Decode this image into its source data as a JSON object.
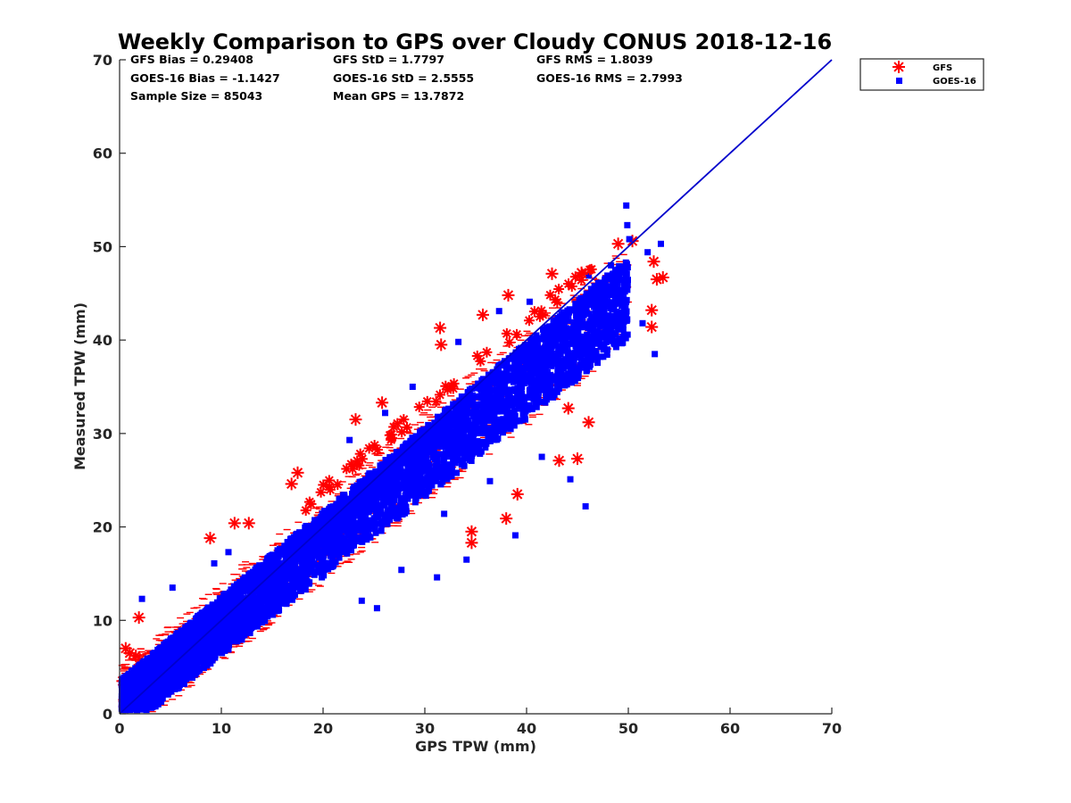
{
  "chart_data": {
    "type": "scatter",
    "title": "Weekly Comparison to GPS over Cloudy CONUS 2018-12-16",
    "xlabel": "GPS TPW (mm)",
    "ylabel": "Measured TPW (mm)",
    "xlim": [
      0,
      70
    ],
    "ylim": [
      0,
      70
    ],
    "xticks": [
      "0",
      "10",
      "20",
      "30",
      "40",
      "50",
      "60",
      "70"
    ],
    "yticks": [
      "0",
      "10",
      "20",
      "30",
      "40",
      "50",
      "60",
      "70"
    ],
    "grid": false,
    "legend_position": "top-right, outside plot area",
    "stats": [
      "GFS Bias = 0.29408",
      "GFS StD = 1.7797",
      "GFS RMS = 1.8039",
      "GOES-16 Bias = -1.1427",
      "GOES-16 StD = 2.5555",
      "GOES-16 RMS = 2.7993",
      "Sample Size = 85043",
      "Mean GPS = 13.7872"
    ],
    "reference_line": {
      "x": [
        0,
        70
      ],
      "y": [
        0,
        70
      ],
      "color": "#0000cc"
    },
    "series": [
      {
        "name": "GFS",
        "marker": "asterisk",
        "color": "#ff0000",
        "approx_points": [
          [
            1.9,
            10.3
          ],
          [
            8.9,
            18.8
          ],
          [
            11.3,
            20.4
          ],
          [
            12.7,
            20.4
          ],
          [
            16.9,
            24.6
          ],
          [
            17.5,
            25.8
          ],
          [
            23.2,
            31.5
          ],
          [
            25.8,
            33.3
          ],
          [
            31.5,
            41.3
          ],
          [
            31.6,
            39.5
          ],
          [
            35.7,
            42.7
          ],
          [
            38.2,
            44.8
          ],
          [
            42.5,
            47.1
          ],
          [
            45.4,
            47.2
          ],
          [
            49.0,
            50.3
          ],
          [
            50.4,
            50.6
          ],
          [
            52.5,
            48.4
          ],
          [
            52.8,
            46.5
          ],
          [
            53.4,
            46.7
          ],
          [
            52.3,
            43.2
          ],
          [
            52.3,
            41.4
          ],
          [
            44.1,
            32.7
          ],
          [
            46.1,
            31.2
          ],
          [
            45.0,
            27.3
          ],
          [
            43.2,
            27.1
          ],
          [
            39.1,
            23.5
          ],
          [
            38.0,
            20.9
          ],
          [
            34.6,
            19.5
          ],
          [
            34.6,
            18.3
          ],
          [
            1.0,
            6.5
          ],
          [
            0.6,
            7.0
          ],
          [
            1.6,
            6.2
          ],
          [
            0.3,
            3.5
          ],
          [
            2.0,
            5.8
          ]
        ]
      },
      {
        "name": "GOES-16",
        "marker": "square",
        "color": "#0000ff",
        "approx_points": [
          [
            49.8,
            54.4
          ],
          [
            49.9,
            52.3
          ],
          [
            50.1,
            50.8
          ],
          [
            53.2,
            50.3
          ],
          [
            51.9,
            49.4
          ],
          [
            52.6,
            38.5
          ],
          [
            51.4,
            41.8
          ],
          [
            45.8,
            22.2
          ],
          [
            44.3,
            25.1
          ],
          [
            41.5,
            27.5
          ],
          [
            38.9,
            19.1
          ],
          [
            34.1,
            16.5
          ],
          [
            31.2,
            14.6
          ],
          [
            27.7,
            15.4
          ],
          [
            25.3,
            11.3
          ],
          [
            23.8,
            12.1
          ],
          [
            36.4,
            24.9
          ],
          [
            31.9,
            21.4
          ],
          [
            2.2,
            12.3
          ],
          [
            5.2,
            13.5
          ],
          [
            9.3,
            16.1
          ],
          [
            10.7,
            17.3
          ],
          [
            22.6,
            29.3
          ],
          [
            26.1,
            32.2
          ],
          [
            28.8,
            35.0
          ],
          [
            33.3,
            39.8
          ],
          [
            37.3,
            43.1
          ],
          [
            40.3,
            44.1
          ],
          [
            46.1,
            46.9
          ],
          [
            48.3,
            48.0
          ]
        ],
        "dense_band": {
          "x_range": [
            0.2,
            50
          ],
          "upper_offset_at_0": 3.5,
          "upper_offset_at_50": -1.2,
          "lower_offset_at_0": -2.2,
          "lower_offset_at_50": -10.0
        }
      }
    ]
  }
}
